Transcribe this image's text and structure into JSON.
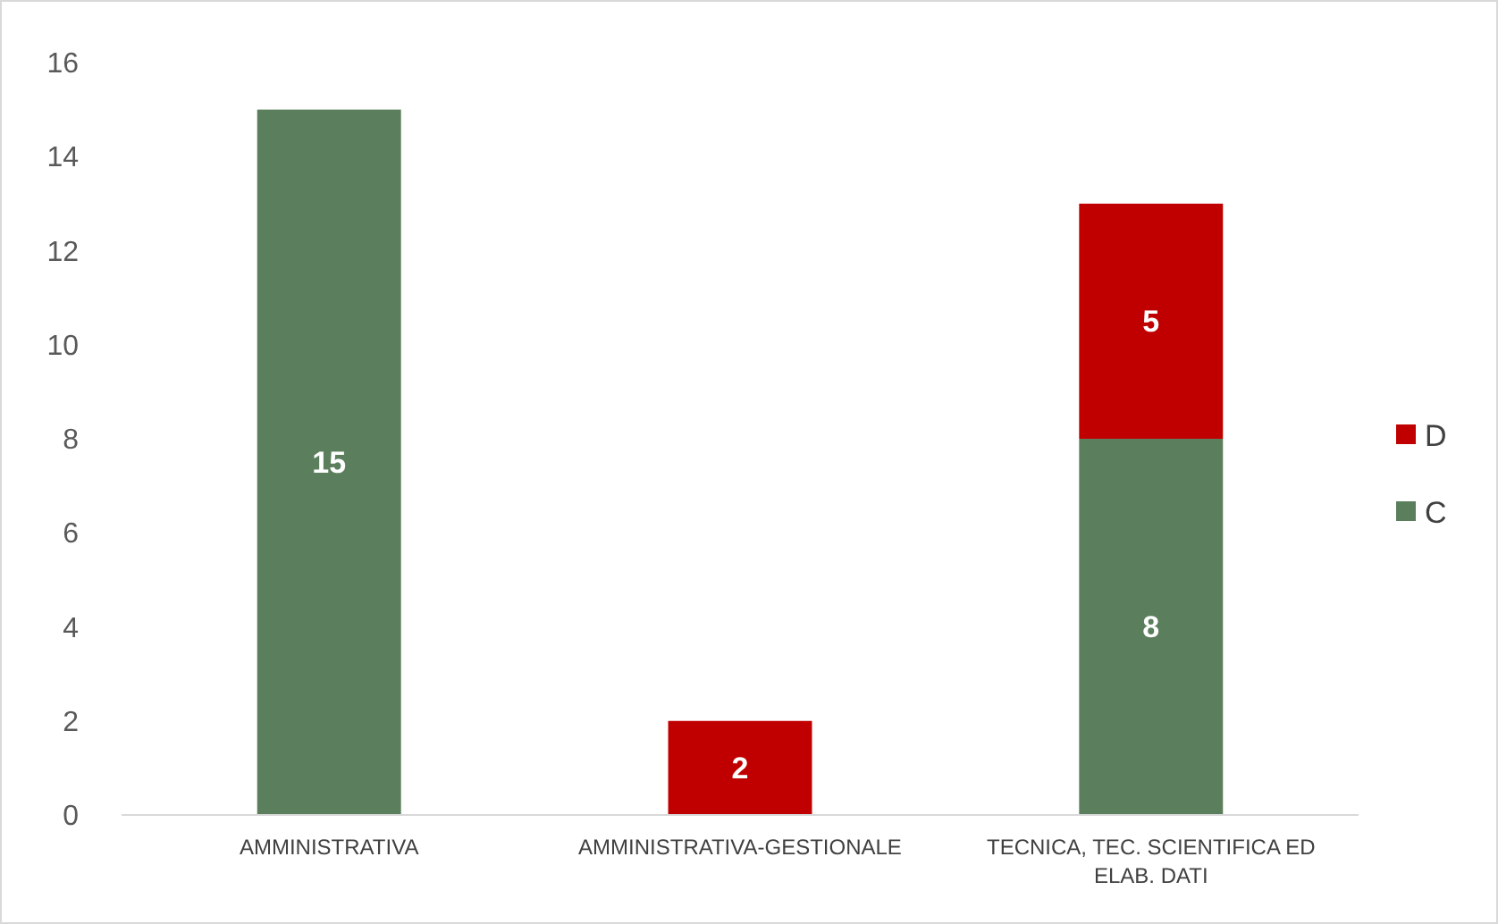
{
  "chart_data": {
    "type": "bar",
    "stacked": true,
    "categories": [
      "AMMINISTRATIVA",
      "AMMINISTRATIVA-GESTIONALE",
      "TECNICA, TEC. SCIENTIFICA ED ELAB. DATI"
    ],
    "series": [
      {
        "name": "C",
        "color": "#5b7f5c",
        "values": [
          15,
          null,
          8
        ]
      },
      {
        "name": "D",
        "color": "#c00000",
        "values": [
          null,
          2,
          5
        ]
      }
    ],
    "ylim": [
      0,
      16
    ],
    "yticks": [
      0,
      2,
      4,
      6,
      8,
      10,
      12,
      14,
      16
    ],
    "grid": false,
    "legend": "right",
    "data_labels": true
  }
}
